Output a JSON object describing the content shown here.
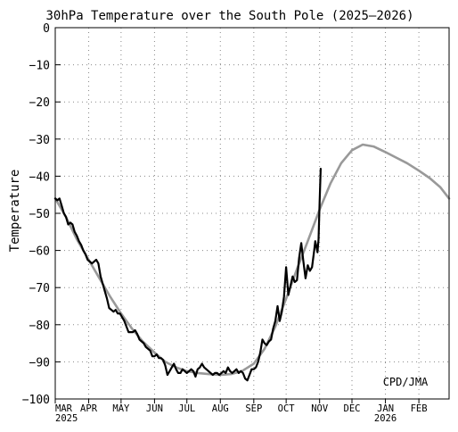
{
  "chart_data": {
    "type": "line",
    "title": "30hPa Temperature over the South Pole (2025–2026)",
    "ylabel": "Temperature",
    "xlabel": "",
    "credit": "CPD/JMA",
    "x_range": [
      "2025-03-01",
      "2026-03-01"
    ],
    "ylim": [
      -100,
      0
    ],
    "y_ticks": [
      0,
      -10,
      -20,
      -30,
      -40,
      -50,
      -60,
      -70,
      -80,
      -90,
      -100
    ],
    "y_tick_labels": [
      "0",
      "−10",
      "−20",
      "−30",
      "−40",
      "−50",
      "−60",
      "−70",
      "−80",
      "−90",
      "−100"
    ],
    "x_ticks": [
      {
        "date": "2025-03-01",
        "label": "MAR",
        "year": "2025"
      },
      {
        "date": "2025-04-01",
        "label": "APR",
        "year": ""
      },
      {
        "date": "2025-05-01",
        "label": "MAY",
        "year": ""
      },
      {
        "date": "2025-06-01",
        "label": "JUN",
        "year": ""
      },
      {
        "date": "2025-07-01",
        "label": "JUL",
        "year": ""
      },
      {
        "date": "2025-08-01",
        "label": "AUG",
        "year": ""
      },
      {
        "date": "2025-09-01",
        "label": "SEP",
        "year": ""
      },
      {
        "date": "2025-10-01",
        "label": "OCT",
        "year": ""
      },
      {
        "date": "2025-11-01",
        "label": "NOV",
        "year": ""
      },
      {
        "date": "2025-12-01",
        "label": "DEC",
        "year": ""
      },
      {
        "date": "2026-01-01",
        "label": "JAN",
        "year": "2026"
      },
      {
        "date": "2026-02-01",
        "label": "FEB",
        "year": ""
      }
    ],
    "grid": true,
    "colors": {
      "observed": "#000000",
      "climatology": "#999999",
      "grid": "#888888"
    },
    "series": [
      {
        "style": "climatology",
        "points": [
          [
            "2025-03-01",
            -46
          ],
          [
            "2025-03-11",
            -51
          ],
          [
            "2025-03-21",
            -57
          ],
          [
            "2025-04-01",
            -62.5
          ],
          [
            "2025-04-11",
            -67.5
          ],
          [
            "2025-04-21",
            -72.5
          ],
          [
            "2025-05-01",
            -77
          ],
          [
            "2025-05-11",
            -81
          ],
          [
            "2025-05-21",
            -84.5
          ],
          [
            "2025-06-01",
            -87.5
          ],
          [
            "2025-06-11",
            -90
          ],
          [
            "2025-06-21",
            -91.5
          ],
          [
            "2025-07-01",
            -92.5
          ],
          [
            "2025-07-11",
            -93
          ],
          [
            "2025-07-21",
            -93.3
          ],
          [
            "2025-08-01",
            -93.5
          ],
          [
            "2025-08-11",
            -93.3
          ],
          [
            "2025-08-21",
            -92.5
          ],
          [
            "2025-09-01",
            -90.5
          ],
          [
            "2025-09-11",
            -86.5
          ],
          [
            "2025-09-21",
            -80.5
          ],
          [
            "2025-10-01",
            -73
          ],
          [
            "2025-10-11",
            -65
          ],
          [
            "2025-10-21",
            -57.5
          ],
          [
            "2025-11-01",
            -49
          ],
          [
            "2025-11-11",
            -42
          ],
          [
            "2025-11-21",
            -36.5
          ],
          [
            "2025-12-01",
            -33
          ],
          [
            "2025-12-11",
            -31.5
          ],
          [
            "2025-12-21",
            -32
          ],
          [
            "2026-01-01",
            -33.5
          ],
          [
            "2026-01-11",
            -35
          ],
          [
            "2026-01-21",
            -36.5
          ],
          [
            "2026-02-01",
            -38.5
          ],
          [
            "2026-02-11",
            -40.5
          ],
          [
            "2026-02-21",
            -43
          ],
          [
            "2026-03-01",
            -46
          ]
        ]
      },
      {
        "style": "observed",
        "points": [
          [
            "2025-03-01",
            -46
          ],
          [
            "2025-03-03",
            -46.5
          ],
          [
            "2025-03-05",
            -46
          ],
          [
            "2025-03-07",
            -48
          ],
          [
            "2025-03-09",
            -50
          ],
          [
            "2025-03-11",
            -51
          ],
          [
            "2025-03-13",
            -53
          ],
          [
            "2025-03-15",
            -52.5
          ],
          [
            "2025-03-17",
            -53
          ],
          [
            "2025-03-19",
            -55
          ],
          [
            "2025-03-21",
            -56
          ],
          [
            "2025-03-23",
            -57.5
          ],
          [
            "2025-03-25",
            -58.5
          ],
          [
            "2025-03-27",
            -60
          ],
          [
            "2025-03-29",
            -61
          ],
          [
            "2025-03-31",
            -62.5
          ],
          [
            "2025-04-02",
            -63
          ],
          [
            "2025-04-04",
            -63.5
          ],
          [
            "2025-04-06",
            -63
          ],
          [
            "2025-04-08",
            -62.5
          ],
          [
            "2025-04-10",
            -63.5
          ],
          [
            "2025-04-12",
            -67
          ],
          [
            "2025-04-14",
            -69
          ],
          [
            "2025-04-16",
            -71
          ],
          [
            "2025-04-18",
            -73
          ],
          [
            "2025-04-20",
            -75.5
          ],
          [
            "2025-04-22",
            -76
          ],
          [
            "2025-04-24",
            -76.5
          ],
          [
            "2025-04-26",
            -76
          ],
          [
            "2025-04-28",
            -77
          ],
          [
            "2025-04-30",
            -77
          ],
          [
            "2025-05-02",
            -78
          ],
          [
            "2025-05-04",
            -79
          ],
          [
            "2025-05-06",
            -80.5
          ],
          [
            "2025-05-08",
            -82
          ],
          [
            "2025-05-10",
            -82
          ],
          [
            "2025-05-12",
            -82
          ],
          [
            "2025-05-14",
            -81.5
          ],
          [
            "2025-05-16",
            -82.5
          ],
          [
            "2025-05-18",
            -84
          ],
          [
            "2025-05-20",
            -84.5
          ],
          [
            "2025-05-22",
            -85
          ],
          [
            "2025-05-24",
            -86
          ],
          [
            "2025-05-26",
            -86.5
          ],
          [
            "2025-05-28",
            -87
          ],
          [
            "2025-05-30",
            -88.5
          ],
          [
            "2025-06-01",
            -88.5
          ],
          [
            "2025-06-03",
            -88
          ],
          [
            "2025-06-05",
            -89
          ],
          [
            "2025-06-07",
            -89
          ],
          [
            "2025-06-09",
            -89.5
          ],
          [
            "2025-06-11",
            -91
          ],
          [
            "2025-06-13",
            -93.5
          ],
          [
            "2025-06-15",
            -92.5
          ],
          [
            "2025-06-17",
            -91.5
          ],
          [
            "2025-06-19",
            -90.5
          ],
          [
            "2025-06-21",
            -92
          ],
          [
            "2025-06-23",
            -93
          ],
          [
            "2025-06-25",
            -93
          ],
          [
            "2025-06-27",
            -92
          ],
          [
            "2025-06-29",
            -92.5
          ],
          [
            "2025-07-01",
            -93
          ],
          [
            "2025-07-03",
            -92.5
          ],
          [
            "2025-07-05",
            -92
          ],
          [
            "2025-07-07",
            -92.5
          ],
          [
            "2025-07-09",
            -94
          ],
          [
            "2025-07-11",
            -92
          ],
          [
            "2025-07-13",
            -91.5
          ],
          [
            "2025-07-15",
            -90.5
          ],
          [
            "2025-07-17",
            -91.5
          ],
          [
            "2025-07-19",
            -92
          ],
          [
            "2025-07-21",
            -92.5
          ],
          [
            "2025-07-23",
            -93
          ],
          [
            "2025-07-25",
            -93.5
          ],
          [
            "2025-07-27",
            -93
          ],
          [
            "2025-07-29",
            -93
          ],
          [
            "2025-07-31",
            -93.5
          ],
          [
            "2025-08-02",
            -93
          ],
          [
            "2025-08-04",
            -92.5
          ],
          [
            "2025-08-06",
            -93
          ],
          [
            "2025-08-08",
            -91.5
          ],
          [
            "2025-08-10",
            -92.5
          ],
          [
            "2025-08-12",
            -93
          ],
          [
            "2025-08-14",
            -92.5
          ],
          [
            "2025-08-16",
            -92
          ],
          [
            "2025-08-18",
            -93
          ],
          [
            "2025-08-20",
            -92.5
          ],
          [
            "2025-08-22",
            -93
          ],
          [
            "2025-08-24",
            -94.5
          ],
          [
            "2025-08-26",
            -95
          ],
          [
            "2025-08-28",
            -93.5
          ],
          [
            "2025-08-30",
            -92
          ],
          [
            "2025-09-01",
            -92
          ],
          [
            "2025-09-03",
            -91.5
          ],
          [
            "2025-09-05",
            -90
          ],
          [
            "2025-09-07",
            -87.5
          ],
          [
            "2025-09-09",
            -84
          ],
          [
            "2025-09-11",
            -85
          ],
          [
            "2025-09-13",
            -85.5
          ],
          [
            "2025-09-15",
            -84.5
          ],
          [
            "2025-09-17",
            -84
          ],
          [
            "2025-09-19",
            -81
          ],
          [
            "2025-09-21",
            -79
          ],
          [
            "2025-09-23",
            -75
          ],
          [
            "2025-09-25",
            -79
          ],
          [
            "2025-09-27",
            -76.5
          ],
          [
            "2025-09-29",
            -72.5
          ],
          [
            "2025-10-01",
            -64.5
          ],
          [
            "2025-10-03",
            -72
          ],
          [
            "2025-10-05",
            -69.5
          ],
          [
            "2025-10-07",
            -67
          ],
          [
            "2025-10-09",
            -68.5
          ],
          [
            "2025-10-11",
            -68
          ],
          [
            "2025-10-13",
            -62
          ],
          [
            "2025-10-15",
            -58
          ],
          [
            "2025-10-17",
            -63
          ],
          [
            "2025-10-19",
            -67.5
          ],
          [
            "2025-10-21",
            -64
          ],
          [
            "2025-10-23",
            -65.5
          ],
          [
            "2025-10-25",
            -64.5
          ],
          [
            "2025-10-27",
            -60
          ],
          [
            "2025-10-28",
            -57.5
          ],
          [
            "2025-10-29",
            -59
          ],
          [
            "2025-10-30",
            -60.5
          ],
          [
            "2025-10-31",
            -57
          ],
          [
            "2025-11-01",
            -47
          ],
          [
            "2025-11-02",
            -38
          ]
        ]
      }
    ]
  }
}
